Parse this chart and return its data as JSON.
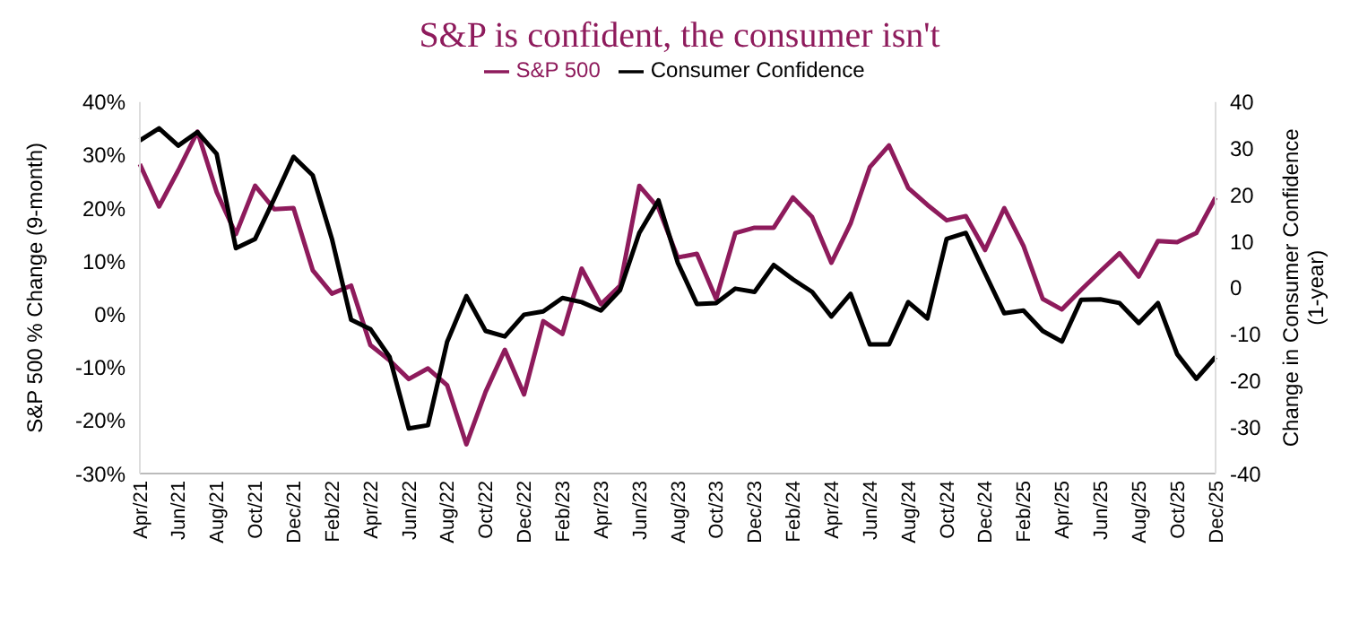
{
  "chart_data": {
    "type": "line",
    "title": "S&P is confident, the consumer isn't",
    "categories": [
      "Apr/21",
      null,
      "Jun/21",
      null,
      "Aug/21",
      null,
      "Oct/21",
      null,
      "Dec/21",
      null,
      "Feb/22",
      null,
      "Apr/22",
      null,
      "Jun/22",
      null,
      "Aug/22",
      null,
      "Oct/22",
      null,
      "Dec/22",
      null,
      "Feb/23",
      null,
      "Apr/23",
      null,
      "Jun/23",
      null,
      "Aug/23",
      null,
      "Oct/23",
      null,
      "Dec/23",
      null,
      "Feb/24",
      null,
      "Apr/24",
      null,
      "Jun/24",
      null,
      "Aug/24",
      null,
      "Oct/24",
      null,
      "Dec/24",
      null,
      "Feb/25",
      null,
      "Apr/25",
      null,
      "Jun/25",
      null,
      "Aug/25",
      null,
      "Oct/25",
      null,
      "Dec/25"
    ],
    "series": [
      {
        "name": "S&P 500",
        "color": "#8e1b5c",
        "values": [
          28.3,
          20.3,
          27.1,
          34.4,
          23,
          15.1,
          24.2,
          19.8,
          20,
          8.3,
          3.9,
          5.4,
          -5.8,
          -8.7,
          -12.2,
          -10.2,
          -13.4,
          -24.5,
          -14.6,
          -6.7,
          -15.1,
          -1.3,
          -3.7,
          8.6,
          1.9,
          5.4,
          24.2,
          20,
          10.7,
          11.4,
          2.9,
          15.3,
          16.3,
          16.3,
          22,
          18.3,
          9.7,
          17.1,
          27.7,
          31.8,
          23.8,
          20.6,
          17.7,
          18.5,
          12.1,
          20,
          12.9,
          2.9,
          0.9,
          4.6,
          8.1,
          11.5,
          7.1,
          13.8,
          13.6,
          15.3,
          22
        ]
      },
      {
        "name": "Consumer Confidence",
        "color": "#000000",
        "axis": "y2",
        "values": [
          31.7,
          34.3,
          30.6,
          33.5,
          28.8,
          8.5,
          10.5,
          19.2,
          28.2,
          24.2,
          10.5,
          -6.9,
          -8.9,
          -14.9,
          -30.3,
          -29.6,
          -11.6,
          -1.8,
          -9.3,
          -10.5,
          -5.8,
          -5.1,
          -2.2,
          -3.1,
          -4.9,
          -0.5,
          11.8,
          18.8,
          5.4,
          -3.5,
          -3.3,
          -0.2,
          -0.9,
          4.9,
          1.8,
          -0.9,
          -6.2,
          -1.3,
          -12.2,
          -12.2,
          -3.1,
          -6.6,
          10.5,
          11.8,
          3.1,
          -5.5,
          -4.9,
          -9.3,
          -11.6,
          -2.6,
          -2.5,
          -3.3,
          -7.6,
          -3.3,
          -14.3,
          -19.6,
          -14.9
        ]
      }
    ],
    "ylabel": "S&P 500 % Change (9-month)",
    "y2label": "Change in Consumer Confidence (1-year)",
    "ylim": [
      -30,
      40
    ],
    "yticks": [
      {
        "value": -30,
        "label": "-30%"
      },
      {
        "value": -20,
        "label": "-20%"
      },
      {
        "value": -10,
        "label": "-10%"
      },
      {
        "value": 0,
        "label": "0%"
      },
      {
        "value": 10,
        "label": "10%"
      },
      {
        "value": 20,
        "label": "20%"
      },
      {
        "value": 30,
        "label": "30%"
      },
      {
        "value": 40,
        "label": "40%"
      }
    ],
    "y2lim": [
      -40,
      40
    ],
    "y2ticks": [
      -40,
      -30,
      -20,
      -10,
      0,
      10,
      20,
      30,
      40
    ],
    "legend": "top",
    "grid": false,
    "marker": "none",
    "line_style": "solid"
  }
}
